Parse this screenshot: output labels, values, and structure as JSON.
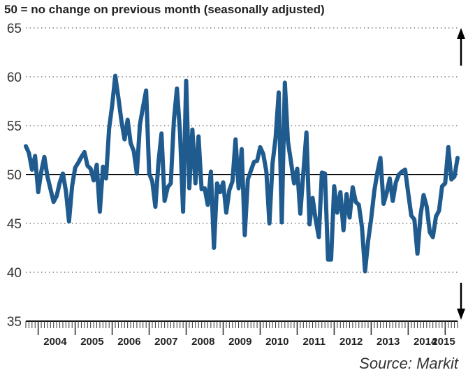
{
  "chart_data": {
    "type": "line",
    "subtitle": "50 = no change on previous month (seasonally adjusted)",
    "source": "Source: Markit",
    "ylim": [
      35,
      65
    ],
    "yticks": [
      35,
      40,
      45,
      50,
      55,
      60,
      65
    ],
    "reference_line": 50,
    "grid": "dotted horizontal",
    "x_start": "2003-09",
    "year_labels": [
      "2004",
      "2005",
      "2006",
      "2007",
      "2008",
      "2009",
      "2010",
      "2011",
      "2012",
      "2013",
      "2014",
      "2015"
    ],
    "series": [
      {
        "color": "#1f5b8e",
        "values": [
          52.9,
          52.2,
          50.5,
          51.9,
          48.2,
          50.3,
          51.8,
          49.8,
          48.5,
          47.2,
          47.8,
          49.2,
          50.1,
          48.3,
          45.2,
          48.8,
          50.7,
          51.2,
          51.8,
          52.3,
          50.9,
          50.6,
          49.4,
          51.0,
          46.2,
          50.8,
          49.6,
          54.7,
          57.1,
          60.1,
          57.9,
          55.5,
          53.6,
          55.6,
          53.2,
          52.4,
          50.1,
          55.1,
          56.9,
          58.6,
          50.1,
          49.3,
          46.7,
          51.2,
          54.2,
          47.3,
          48.7,
          49.1,
          55.5,
          58.8,
          54.3,
          46.2,
          59.6,
          48.6,
          54.6,
          49.1,
          53.9,
          48.5,
          48.6,
          46.9,
          50.3,
          42.5,
          49.1,
          48.2,
          49.2,
          46.1,
          48.4,
          49.3,
          53.6,
          48.6,
          52.6,
          43.8,
          49.5,
          50.4,
          51.3,
          51.4,
          52.8,
          52.1,
          50.3,
          45.0,
          51.1,
          53.8,
          58.4,
          45.1,
          59.4,
          53.4,
          51.3,
          49.1,
          50.6,
          46.0,
          50.2,
          54.3,
          44.9,
          47.6,
          45.4,
          43.6,
          50.2,
          50.1,
          41.3,
          41.3,
          48.8,
          46.1,
          48.2,
          44.3,
          48.0,
          45.6,
          48.7,
          47.2,
          46.9,
          44.6,
          40.1,
          43.2,
          45.5,
          48.3,
          50.2,
          51.7,
          47.0,
          48.1,
          49.6,
          47.3,
          49.2,
          50.0,
          50.3,
          50.5,
          48.1,
          45.8,
          45.4,
          41.9,
          45.8,
          47.9,
          46.7,
          44.1,
          43.6,
          45.7,
          46.3,
          48.8,
          49.1,
          52.8,
          49.5,
          49.8,
          51.7
        ]
      }
    ]
  }
}
